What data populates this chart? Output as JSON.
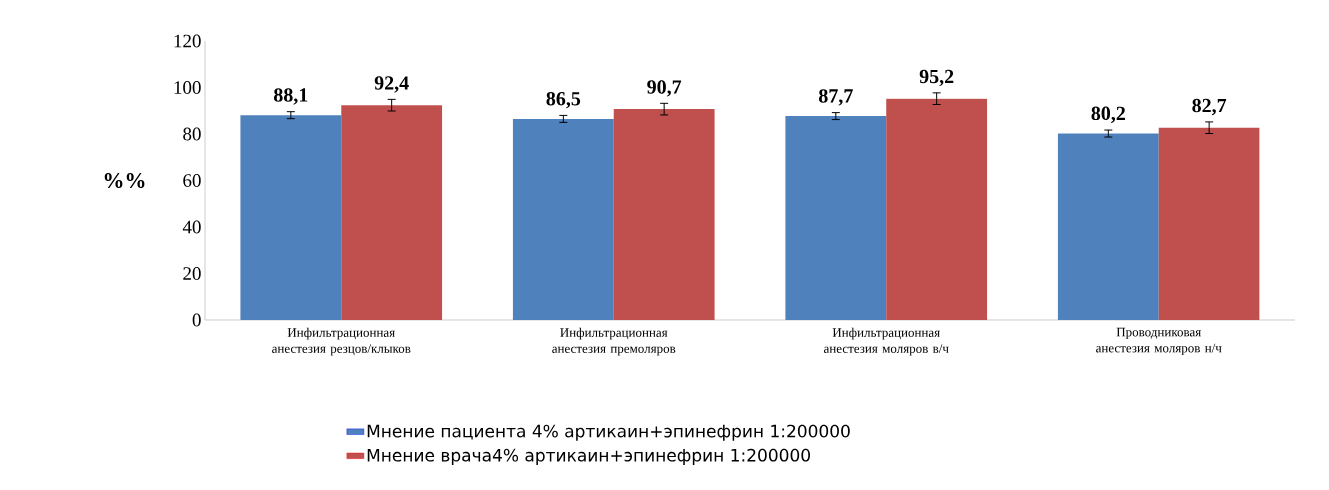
{
  "chart_data": {
    "type": "bar",
    "ylabel": "%%",
    "categories": [
      "Инфильтрационная анестезия резцов/клыков",
      "Инфильтрационная анестезия премоляров",
      "Инфильтрационная анестезия моляров в/ч",
      "Проводниковая анестезия моляров н/ч"
    ],
    "series": [
      {
        "name": "Мнение пациента 4% артикаин+эпинефрин 1:200000",
        "color": "#4f81bd",
        "values": [
          88.1,
          86.5,
          87.7,
          80.2
        ],
        "errors": [
          1.5,
          1.5,
          1.5,
          1.5
        ],
        "value_labels": [
          "88,1",
          "86,5",
          "87,7",
          "80,2"
        ]
      },
      {
        "name": "Мнение врача4% артикаин+эпинефрин 1:200000",
        "color": "#c0504d",
        "values": [
          92.4,
          90.7,
          95.2,
          82.7
        ],
        "errors": [
          2.5,
          2.5,
          2.5,
          2.5
        ],
        "value_labels": [
          "92,4",
          "90,7",
          "95,2",
          "82,7"
        ]
      }
    ],
    "ylim": [
      0,
      120
    ],
    "yticks": [
      0,
      20,
      40,
      60,
      80,
      100,
      120
    ],
    "grid": false,
    "legend": "bottom"
  }
}
